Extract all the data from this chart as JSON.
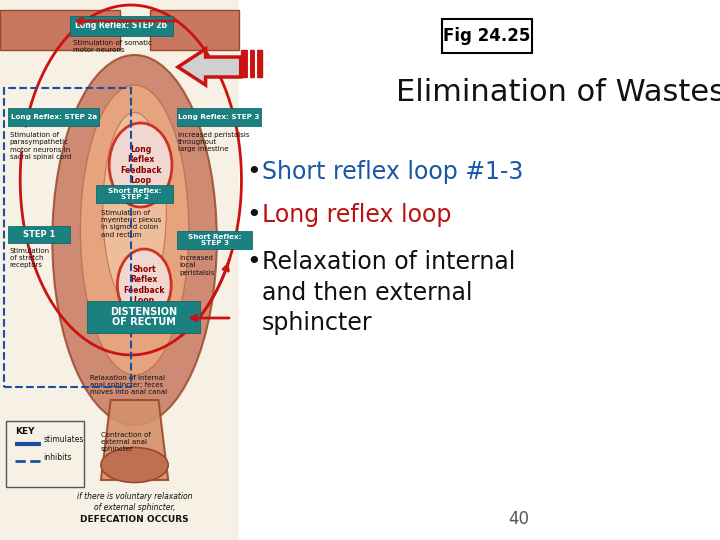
{
  "fig_label": "Fig 24.25",
  "title": "Elimination of Wastes",
  "bullets": [
    {
      "text": "Short reflex loop #1-3",
      "color": "#1955a8"
    },
    {
      "text": "Long reflex loop",
      "color": "#bb1111"
    },
    {
      "text": "Relaxation of internal\nand then external\nsphincter",
      "color": "#111111"
    }
  ],
  "bullet_color": "#111111",
  "page_number": "40",
  "background_color": "#ffffff",
  "title_color": "#111111",
  "title_fontsize": 22,
  "bullet_fontsize": 17,
  "fig_label_fontsize": 12,
  "diagram_bg": "#f7f0e4",
  "teal_color": "#1a8080",
  "teal_dark": "#006060",
  "red_arrow": "#cc1111",
  "blue_dashed": "#1a4fa0"
}
